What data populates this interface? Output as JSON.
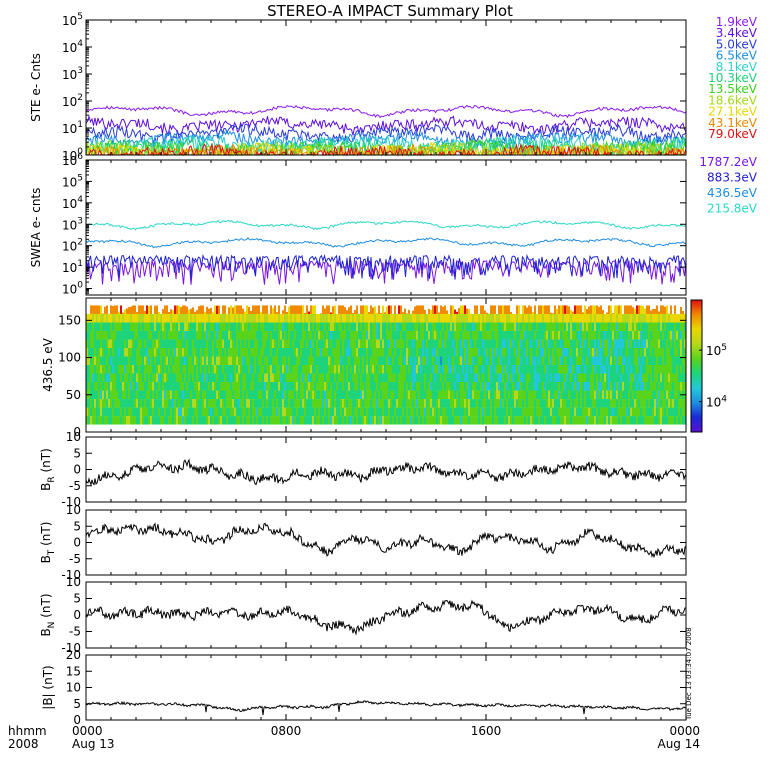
{
  "title": "STEREO-A IMPACT Summary Plot",
  "footer": {
    "unit_label": "hhmm",
    "year_label": "2008",
    "time_ticks": [
      {
        "top": "0000",
        "bottom": "Aug 13",
        "frac": 0
      },
      {
        "top": "0800",
        "bottom": "",
        "frac": 0.3333
      },
      {
        "top": "1600",
        "bottom": "",
        "frac": 0.6667
      },
      {
        "top": "0000",
        "bottom": "Aug 14",
        "frac": 1
      }
    ],
    "side_stamp": "Tue Dec 13 03:34:07 2008"
  },
  "chart_data": [
    {
      "type": "line",
      "panel": "ste",
      "ylabel": "STE e- Cnts",
      "yscale": "log",
      "ylim": [
        1,
        100000
      ],
      "ytick_labels": [
        {
          "base": "10",
          "exp": "0",
          "v": 1
        },
        {
          "base": "10",
          "exp": "1",
          "v": 10
        },
        {
          "base": "10",
          "exp": "2",
          "v": 100
        },
        {
          "base": "10",
          "exp": "3",
          "v": 1000
        },
        {
          "base": "10",
          "exp": "4",
          "v": 10000
        },
        {
          "base": "10",
          "exp": "5",
          "v": 100000
        }
      ],
      "series": [
        {
          "name": "1.9keV",
          "color": "#8b1aee",
          "level": 45
        },
        {
          "name": "3.4keV",
          "color": "#5f0fdc",
          "level": 14
        },
        {
          "name": "5.0keV",
          "color": "#2a3bd6",
          "level": 7
        },
        {
          "name": "6.5keV",
          "color": "#1e8ee2",
          "level": 4
        },
        {
          "name": "8.1keV",
          "color": "#2ad0cc",
          "level": 2.6
        },
        {
          "name": "10.3keV",
          "color": "#1fd07a",
          "level": 2
        },
        {
          "name": "13.5keV",
          "color": "#3ad21a",
          "level": 1.6
        },
        {
          "name": "18.6keV",
          "color": "#a6d81a",
          "level": 1.4
        },
        {
          "name": "27.1keV",
          "color": "#e6d800",
          "level": 1.25
        },
        {
          "name": "43.1keV",
          "color": "#e88a00",
          "level": 1.15
        },
        {
          "name": "79.0keV",
          "color": "#e01010",
          "level": 1.1
        }
      ]
    },
    {
      "type": "line",
      "panel": "swea",
      "ylabel": "SWEA e- cnts",
      "yscale": "log",
      "ylim": [
        0.5,
        1000000
      ],
      "ytick_labels": [
        {
          "base": "10",
          "exp": "0",
          "v": 1
        },
        {
          "base": "10",
          "exp": "1",
          "v": 10
        },
        {
          "base": "10",
          "exp": "2",
          "v": 100
        },
        {
          "base": "10",
          "exp": "3",
          "v": 1000
        },
        {
          "base": "10",
          "exp": "4",
          "v": 10000
        },
        {
          "base": "10",
          "exp": "5",
          "v": 100000
        },
        {
          "base": "10",
          "exp": "6",
          "v": 1000000
        }
      ],
      "series": [
        {
          "name": "1787.2eV",
          "color": "#7a14e6",
          "level": 6
        },
        {
          "name": "883.3eV",
          "color": "#2222d0",
          "level": 10
        },
        {
          "name": "436.5eV",
          "color": "#1e8ee2",
          "level": 150
        },
        {
          "name": "215.8eV",
          "color": "#2ad8c8",
          "level": 1000
        }
      ]
    },
    {
      "type": "heatmap",
      "panel": "pad",
      "ylabel": "436.5 eV",
      "ylim": [
        0,
        180
      ],
      "yticks": [
        "0",
        "50",
        "100",
        "150"
      ],
      "ytick_values": [
        0,
        50,
        100,
        150
      ],
      "colorbar_ticks": [
        {
          "base": "10",
          "exp": "4",
          "frac": 0.23
        },
        {
          "base": "10",
          "exp": "5",
          "frac": 0.62
        }
      ]
    },
    {
      "type": "line",
      "panel": "br",
      "ylabel_main": "B",
      "ylabel_sub": "R",
      "ylabel_unit": " (nT)",
      "ylim": [
        -10,
        10
      ],
      "yticks": [
        "-10",
        "-5",
        "0",
        "5",
        "10"
      ],
      "ytick_values": [
        -10,
        -5,
        0,
        5,
        10
      ],
      "segments": [
        {
          "t": 0,
          "v": -3
        },
        {
          "t": 0.05,
          "v": -2
        },
        {
          "t": 0.1,
          "v": 0.5
        },
        {
          "t": 0.18,
          "v": 1
        },
        {
          "t": 0.26,
          "v": -2
        },
        {
          "t": 0.3,
          "v": -3
        },
        {
          "t": 0.38,
          "v": -1
        },
        {
          "t": 0.46,
          "v": -2
        },
        {
          "t": 0.5,
          "v": 0
        },
        {
          "t": 0.56,
          "v": 0.5
        },
        {
          "t": 0.62,
          "v": -1.5
        },
        {
          "t": 0.7,
          "v": -2
        },
        {
          "t": 0.76,
          "v": 0
        },
        {
          "t": 0.82,
          "v": 1
        },
        {
          "t": 0.88,
          "v": -1
        },
        {
          "t": 0.95,
          "v": -2
        },
        {
          "t": 1,
          "v": -1
        }
      ]
    },
    {
      "type": "line",
      "panel": "bt",
      "ylabel_main": "B",
      "ylabel_sub": "T",
      "ylabel_unit": " (nT)",
      "ylim": [
        -10,
        10
      ],
      "yticks": [
        "-10",
        "-5",
        "0",
        "5",
        "10"
      ],
      "ytick_values": [
        -10,
        -5,
        0,
        5,
        10
      ],
      "segments": [
        {
          "t": 0,
          "v": 3
        },
        {
          "t": 0.05,
          "v": 4
        },
        {
          "t": 0.1,
          "v": 4
        },
        {
          "t": 0.16,
          "v": 3
        },
        {
          "t": 0.21,
          "v": 0
        },
        {
          "t": 0.26,
          "v": 4
        },
        {
          "t": 0.32,
          "v": 4
        },
        {
          "t": 0.36,
          "v": 1
        },
        {
          "t": 0.4,
          "v": -3
        },
        {
          "t": 0.45,
          "v": 2
        },
        {
          "t": 0.5,
          "v": -2
        },
        {
          "t": 0.56,
          "v": 1
        },
        {
          "t": 0.62,
          "v": -3
        },
        {
          "t": 0.67,
          "v": 2
        },
        {
          "t": 0.72,
          "v": 1
        },
        {
          "t": 0.78,
          "v": -2
        },
        {
          "t": 0.84,
          "v": 3
        },
        {
          "t": 0.9,
          "v": -1
        },
        {
          "t": 0.96,
          "v": -3
        },
        {
          "t": 1,
          "v": -2
        }
      ]
    },
    {
      "type": "line",
      "panel": "bn",
      "ylabel_main": "B",
      "ylabel_sub": "N",
      "ylabel_unit": " (nT)",
      "ylim": [
        -10,
        10
      ],
      "yticks": [
        "-10",
        "-5",
        "0",
        "5",
        "10"
      ],
      "ytick_values": [
        -10,
        -5,
        0,
        5,
        10
      ],
      "segments": [
        {
          "t": 0,
          "v": 1
        },
        {
          "t": 0.05,
          "v": 0
        },
        {
          "t": 0.1,
          "v": 1
        },
        {
          "t": 0.16,
          "v": 0
        },
        {
          "t": 0.22,
          "v": 1
        },
        {
          "t": 0.28,
          "v": 0
        },
        {
          "t": 0.34,
          "v": 1
        },
        {
          "t": 0.4,
          "v": -3
        },
        {
          "t": 0.46,
          "v": -4
        },
        {
          "t": 0.5,
          "v": 0
        },
        {
          "t": 0.56,
          "v": 2
        },
        {
          "t": 0.62,
          "v": 3
        },
        {
          "t": 0.66,
          "v": 2
        },
        {
          "t": 0.7,
          "v": -4
        },
        {
          "t": 0.74,
          "v": -2
        },
        {
          "t": 0.8,
          "v": 1
        },
        {
          "t": 0.86,
          "v": 2
        },
        {
          "t": 0.92,
          "v": -2
        },
        {
          "t": 0.96,
          "v": 1
        },
        {
          "t": 1,
          "v": 2
        }
      ]
    },
    {
      "type": "line",
      "panel": "bmag",
      "ylabel": "|B| (nT)",
      "ylim": [
        0,
        20
      ],
      "yticks": [
        "0",
        "5",
        "10",
        "15",
        "20"
      ],
      "ytick_values": [
        0,
        5,
        10,
        15,
        20
      ],
      "segments": [
        {
          "t": 0,
          "v": 5
        },
        {
          "t": 0.1,
          "v": 5
        },
        {
          "t": 0.2,
          "v": 4.5
        },
        {
          "t": 0.25,
          "v": 3
        },
        {
          "t": 0.3,
          "v": 4
        },
        {
          "t": 0.4,
          "v": 4
        },
        {
          "t": 0.45,
          "v": 5.5
        },
        {
          "t": 0.55,
          "v": 5
        },
        {
          "t": 0.65,
          "v": 4.5
        },
        {
          "t": 0.75,
          "v": 4.5
        },
        {
          "t": 0.85,
          "v": 4
        },
        {
          "t": 0.95,
          "v": 3.5
        },
        {
          "t": 1,
          "v": 3.5
        }
      ]
    }
  ]
}
